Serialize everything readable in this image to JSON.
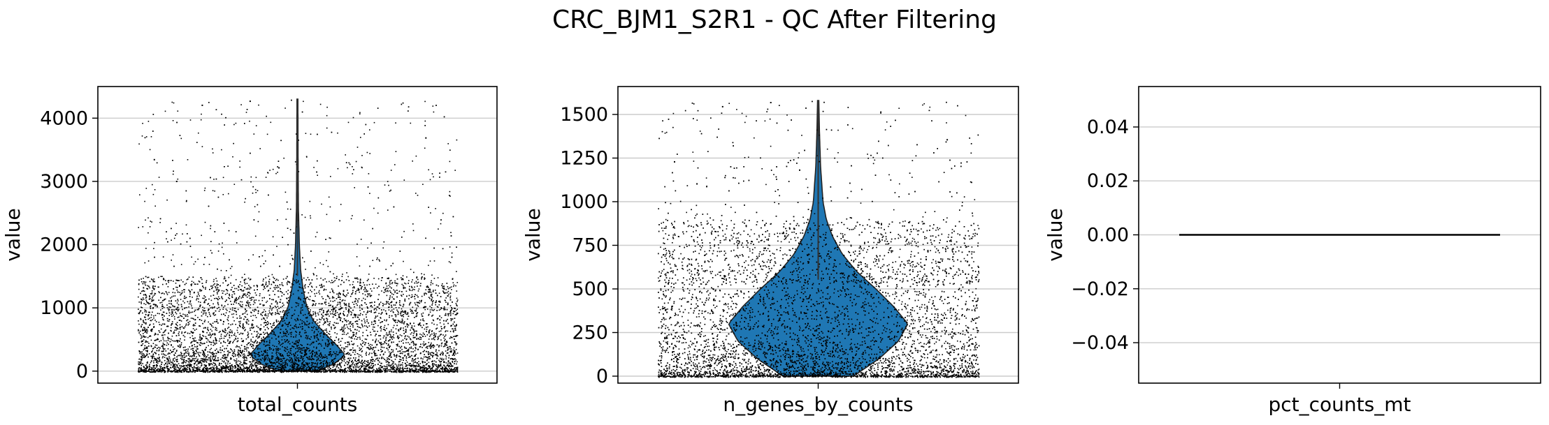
{
  "figure": {
    "title": "CRC_BJM1_S2R1 - QC After Filtering"
  },
  "style": {
    "violin_fill": "#1f77b4",
    "scatter_color": "#000000",
    "grid_color": "#cccccc",
    "axes_color": "#000000"
  },
  "chart_data": [
    {
      "type": "violin",
      "category": "total_counts",
      "ylabel": "value",
      "ylim": [
        -190,
        4500
      ],
      "yticks": [
        0,
        1000,
        2000,
        3000,
        4000
      ],
      "ytick_labels": [
        "0",
        "1000",
        "2000",
        "3000",
        "4000"
      ],
      "grid": true,
      "stripplot": true,
      "distribution": {
        "min": 0,
        "max": 4300,
        "median": 300,
        "mode": 260,
        "bulk_upper": 1500
      },
      "violin_width_profile": [
        [
          0,
          0.12
        ],
        [
          100,
          0.22
        ],
        [
          250,
          0.3
        ],
        [
          400,
          0.25
        ],
        [
          600,
          0.17
        ],
        [
          800,
          0.1
        ],
        [
          1000,
          0.06
        ],
        [
          1300,
          0.035
        ],
        [
          1600,
          0.02
        ],
        [
          2000,
          0.012
        ],
        [
          2600,
          0.006
        ],
        [
          3400,
          0.004
        ],
        [
          4300,
          0.003
        ]
      ]
    },
    {
      "type": "violin",
      "category": "n_genes_by_counts",
      "ylabel": "value",
      "ylim": [
        -40,
        1660
      ],
      "yticks": [
        0,
        250,
        500,
        750,
        1000,
        1250,
        1500
      ],
      "ytick_labels": [
        "0",
        "250",
        "500",
        "750",
        "1000",
        "1250",
        "1500"
      ],
      "grid": true,
      "stripplot": true,
      "distribution": {
        "min": 0,
        "max": 1580,
        "median": 320,
        "mode": 300,
        "bulk_upper": 900
      },
      "violin_width_profile": [
        [
          0,
          0.22
        ],
        [
          100,
          0.38
        ],
        [
          200,
          0.5
        ],
        [
          300,
          0.56
        ],
        [
          400,
          0.47
        ],
        [
          500,
          0.36
        ],
        [
          600,
          0.24
        ],
        [
          700,
          0.15
        ],
        [
          800,
          0.09
        ],
        [
          900,
          0.05
        ],
        [
          1000,
          0.03
        ],
        [
          1200,
          0.015
        ],
        [
          1400,
          0.008
        ],
        [
          1580,
          0.004
        ]
      ]
    },
    {
      "type": "violin",
      "category": "pct_counts_mt",
      "ylabel": "value",
      "ylim": [
        -0.055,
        0.055
      ],
      "yticks": [
        -0.04,
        -0.02,
        0.0,
        0.02,
        0.04
      ],
      "ytick_labels": [
        "−0.04",
        "−0.02",
        "0.00",
        "0.02",
        "0.04"
      ],
      "grid": true,
      "stripplot": true,
      "distribution": {
        "constant_value": 0.0
      }
    }
  ]
}
